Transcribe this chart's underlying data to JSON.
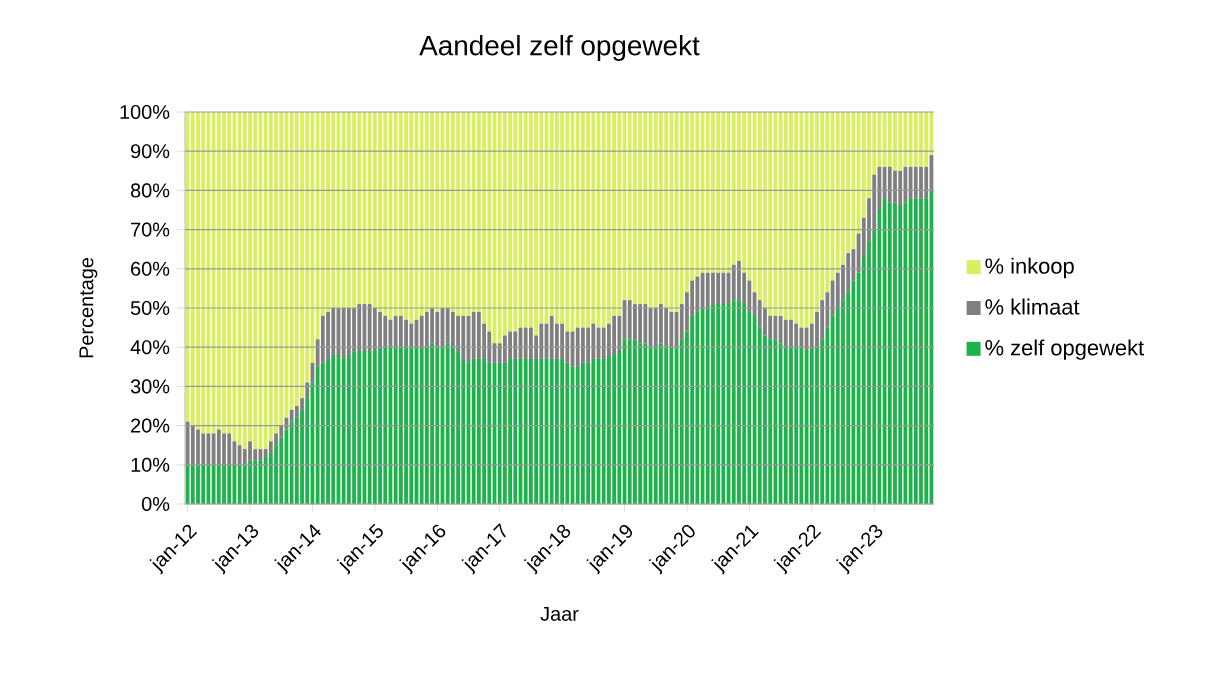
{
  "chart_data": {
    "type": "bar",
    "stacked": true,
    "title": "Aandeel zelf opgewekt",
    "xlabel": "Jaar",
    "ylabel": "Percentage",
    "categories": [
      "jan-12",
      null,
      null,
      null,
      null,
      null,
      null,
      null,
      null,
      null,
      null,
      null,
      "jan-13",
      null,
      null,
      null,
      null,
      null,
      null,
      null,
      null,
      null,
      null,
      null,
      "jan-14",
      null,
      null,
      null,
      null,
      null,
      null,
      null,
      null,
      null,
      null,
      null,
      "jan-15",
      null,
      null,
      null,
      null,
      null,
      null,
      null,
      null,
      null,
      null,
      null,
      "jan-16",
      null,
      null,
      null,
      null,
      null,
      null,
      null,
      null,
      null,
      null,
      null,
      "jan-17",
      null,
      null,
      null,
      null,
      null,
      null,
      null,
      null,
      null,
      null,
      null,
      "jan-18",
      null,
      null,
      null,
      null,
      null,
      null,
      null,
      null,
      null,
      null,
      null,
      "jan-19",
      null,
      null,
      null,
      null,
      null,
      null,
      null,
      null,
      null,
      null,
      null,
      "jan-20",
      null,
      null,
      null,
      null,
      null,
      null,
      null,
      null,
      null,
      null,
      null,
      "jan-21",
      null,
      null,
      null,
      null,
      null,
      null,
      null,
      null,
      null,
      null,
      null,
      "jan-22",
      null,
      null,
      null,
      null,
      null,
      null,
      null,
      null,
      null,
      null,
      null,
      "jan-23",
      null,
      null,
      null,
      null,
      null,
      null,
      null,
      null,
      null,
      null,
      null
    ],
    "series": [
      {
        "name": "% zelf opgewekt",
        "color": "#1db34b",
        "values": [
          10,
          10,
          10,
          10,
          10,
          10,
          10,
          10,
          10,
          10,
          10,
          10,
          11,
          11,
          11,
          12,
          13,
          15,
          17,
          19,
          21,
          22,
          24,
          27,
          31,
          35,
          36,
          37,
          38,
          38,
          37,
          38,
          39,
          39,
          39,
          39,
          39,
          40,
          40,
          40,
          40,
          40,
          40,
          40,
          40,
          40,
          40,
          41,
          40,
          40,
          41,
          40,
          39,
          37,
          36,
          37,
          37,
          37,
          36,
          36,
          36,
          36,
          37,
          37,
          37,
          37,
          37,
          37,
          37,
          37,
          37,
          37,
          37,
          36,
          35,
          35,
          36,
          36,
          37,
          37,
          37,
          38,
          38,
          39,
          42,
          42,
          42,
          41,
          41,
          40,
          40,
          41,
          40,
          40,
          40,
          42,
          44,
          48,
          49,
          50,
          50,
          51,
          51,
          51,
          51,
          52,
          52,
          51,
          49,
          48,
          45,
          43,
          42,
          42,
          41,
          40,
          40,
          40,
          40,
          39,
          40,
          40,
          42,
          45,
          48,
          50,
          52,
          54,
          57,
          59,
          63,
          67,
          70,
          75,
          78,
          77,
          77,
          76,
          77,
          78,
          78,
          78,
          78,
          80
        ]
      },
      {
        "name": "% klimaat",
        "color": "#7f7f7f",
        "values": [
          11,
          10,
          9,
          8,
          8,
          8,
          9,
          8,
          8,
          6,
          5,
          4,
          5,
          3,
          3,
          2,
          3,
          3,
          3,
          3,
          3,
          3,
          3,
          4,
          5,
          7,
          12,
          12,
          12,
          12,
          13,
          12,
          11,
          12,
          12,
          12,
          11,
          9,
          8,
          7,
          8,
          8,
          7,
          6,
          7,
          8,
          9,
          9,
          9,
          10,
          9,
          9,
          9,
          11,
          12,
          12,
          12,
          9,
          8,
          5,
          5,
          7,
          7,
          7,
          8,
          8,
          8,
          6,
          9,
          9,
          11,
          9,
          9,
          8,
          9,
          10,
          9,
          9,
          9,
          8,
          8,
          8,
          10,
          9,
          10,
          10,
          9,
          10,
          10,
          10,
          10,
          10,
          10,
          9,
          9,
          9,
          10,
          9,
          9,
          9,
          9,
          8,
          8,
          8,
          8,
          9,
          10,
          8,
          8,
          6,
          7,
          7,
          6,
          6,
          7,
          7,
          7,
          6,
          5,
          6,
          6,
          9,
          10,
          9,
          9,
          9,
          9,
          10,
          8,
          10,
          10,
          11,
          14,
          11,
          8,
          9,
          8,
          9,
          9,
          8,
          8,
          8,
          8,
          9
        ]
      },
      {
        "name": "% inkoop",
        "color": "#d9ef5f",
        "values": [
          79,
          80,
          81,
          82,
          82,
          82,
          81,
          82,
          82,
          84,
          85,
          86,
          84,
          86,
          86,
          86,
          84,
          82,
          80,
          78,
          76,
          75,
          73,
          69,
          64,
          58,
          52,
          51,
          50,
          50,
          50,
          50,
          50,
          49,
          49,
          49,
          50,
          51,
          52,
          53,
          52,
          52,
          53,
          54,
          53,
          52,
          51,
          50,
          51,
          50,
          50,
          51,
          52,
          52,
          52,
          51,
          51,
          54,
          56,
          59,
          59,
          57,
          56,
          56,
          55,
          55,
          55,
          57,
          54,
          54,
          52,
          54,
          54,
          56,
          56,
          55,
          55,
          55,
          54,
          55,
          55,
          54,
          52,
          52,
          48,
          48,
          49,
          49,
          49,
          50,
          50,
          49,
          50,
          51,
          51,
          49,
          46,
          43,
          42,
          41,
          41,
          41,
          41,
          41,
          41,
          39,
          38,
          41,
          43,
          46,
          48,
          50,
          52,
          52,
          52,
          53,
          53,
          54,
          55,
          55,
          54,
          51,
          48,
          46,
          43,
          41,
          39,
          36,
          35,
          31,
          27,
          22,
          16,
          14,
          14,
          14,
          15,
          15,
          14,
          14,
          14,
          14,
          14,
          11
        ]
      }
    ],
    "ylim": [
      0,
      100
    ],
    "yticks": [
      {
        "value": 0,
        "label": "0%"
      },
      {
        "value": 10,
        "label": "10%"
      },
      {
        "value": 20,
        "label": "20%"
      },
      {
        "value": 30,
        "label": "30%"
      },
      {
        "value": 40,
        "label": "40%"
      },
      {
        "value": 50,
        "label": "50%"
      },
      {
        "value": 60,
        "label": "60%"
      },
      {
        "value": 70,
        "label": "70%"
      },
      {
        "value": 80,
        "label": "80%"
      },
      {
        "value": 90,
        "label": "90%"
      },
      {
        "value": 100,
        "label": "100%"
      }
    ],
    "grid": "y",
    "legend": "right"
  }
}
